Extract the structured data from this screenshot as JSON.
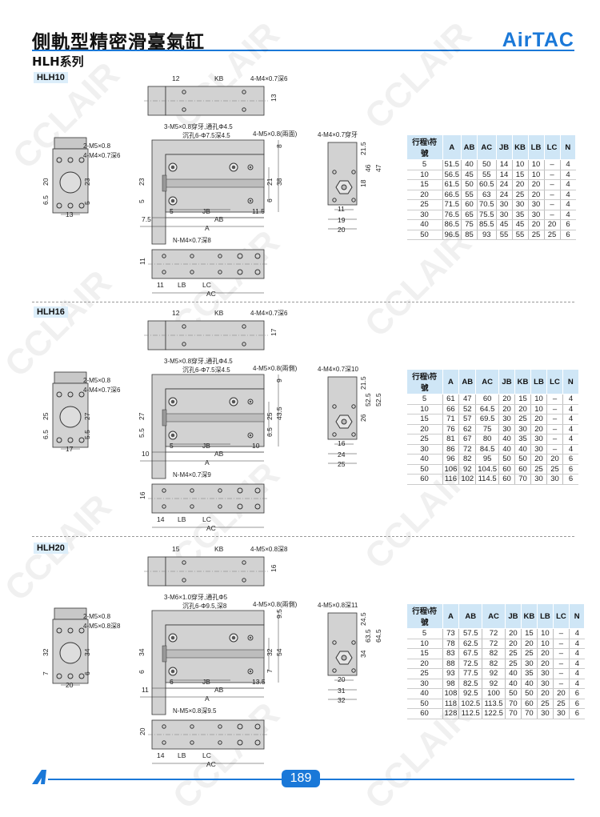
{
  "header": {
    "title": "側軌型精密滑臺氣缸",
    "brand": "AirTAC",
    "series": "HLH系列"
  },
  "watermark": "CCLAIR",
  "footer": {
    "page_number": "189",
    "accent": "#1a78d8"
  },
  "table_headers": [
    "行程\\符號",
    "A",
    "AB",
    "AC",
    "JB",
    "KB",
    "LB",
    "LC",
    "N"
  ],
  "sections": [
    {
      "model": "HLH10",
      "labels": {
        "t_12": "12",
        "t_kb": "KB",
        "t_call": "4-M4×0.7深6",
        "t_h": "13",
        "f_call1": "3-M5×0.8穿牙,通孔Φ4.5",
        "f_call2": "沉孔6-Φ7.5深4.5",
        "f_call3": "4-M5×0.8(兩面)",
        "f_top": "8",
        "f_mid": "21",
        "f_tot": "38",
        "f_bot": "6",
        "f_left": "23",
        "f_left2": "5",
        "f_5": "5",
        "f_jb": "JB",
        "f_r": "11.5",
        "f_l": "7.5",
        "f_ab": "AB",
        "f_a": "A",
        "b_call": "N-M4×0.7深8",
        "b_h": "11",
        "b_l": "11",
        "b_lb": "LB",
        "b_lc": "LC",
        "b_ac": "AC",
        "s_call": "4-M4×0.7穿牙",
        "s_1": "21.5",
        "s_2": "46",
        "s_3": "47",
        "s_4": "18",
        "s_w1": "11",
        "s_w2": "19",
        "s_w3": "20",
        "e_call1": "2-M5×0.8",
        "e_call2": "4-M4×0.7深6",
        "e_1": "20",
        "e_2": "23",
        "e_3": "6.5",
        "e_4": "5",
        "e_w": "13"
      },
      "rows": [
        [
          "5",
          "51.5",
          "40",
          "50",
          "14",
          "10",
          "10",
          "–",
          "4"
        ],
        [
          "10",
          "56.5",
          "45",
          "55",
          "14",
          "15",
          "10",
          "–",
          "4"
        ],
        [
          "15",
          "61.5",
          "50",
          "60.5",
          "24",
          "20",
          "20",
          "–",
          "4"
        ],
        [
          "20",
          "66.5",
          "55",
          "63",
          "24",
          "25",
          "20",
          "–",
          "4"
        ],
        [
          "25",
          "71.5",
          "60",
          "70.5",
          "30",
          "30",
          "30",
          "–",
          "4"
        ],
        [
          "30",
          "76.5",
          "65",
          "75.5",
          "30",
          "35",
          "30",
          "–",
          "4"
        ],
        [
          "40",
          "86.5",
          "75",
          "85.5",
          "45",
          "45",
          "20",
          "20",
          "6"
        ],
        [
          "50",
          "96.5",
          "85",
          "93",
          "55",
          "55",
          "25",
          "25",
          "6"
        ]
      ]
    },
    {
      "model": "HLH16",
      "labels": {
        "t_12": "12",
        "t_kb": "KB",
        "t_call": "4-M4×0.7深6",
        "t_h": "17",
        "f_call1": "3-M5×0.8穿牙,通孔Φ4.5",
        "f_call2": "沉孔6-Φ7.5深4.5",
        "f_call3": "4-M5×0.8(兩側)",
        "f_top": "9",
        "f_mid": "25",
        "f_tot": "43.5",
        "f_bot": "6.5",
        "f_left": "27",
        "f_left2": "5.5",
        "f_5": "5",
        "f_jb": "JB",
        "f_r": "10",
        "f_l": "10",
        "f_ab": "AB",
        "f_a": "A",
        "b_call": "N-M4×0.7深9",
        "b_h": "16",
        "b_l": "14",
        "b_lb": "LB",
        "b_lc": "LC",
        "b_ac": "AC",
        "s_call": "4-M4×0.7深10",
        "s_1": "21.5",
        "s_2": "52.5",
        "s_3": "52.5",
        "s_4": "26",
        "s_w1": "16",
        "s_w2": "24",
        "s_w3": "25",
        "e_call1": "2-M5×0.8",
        "e_call2": "4-M4×0.7深6",
        "e_1": "25",
        "e_2": "27",
        "e_3": "6.5",
        "e_4": "5.5",
        "e_w": "17"
      },
      "rows": [
        [
          "5",
          "61",
          "47",
          "60",
          "20",
          "15",
          "10",
          "–",
          "4"
        ],
        [
          "10",
          "66",
          "52",
          "64.5",
          "20",
          "20",
          "10",
          "–",
          "4"
        ],
        [
          "15",
          "71",
          "57",
          "69.5",
          "30",
          "25",
          "20",
          "–",
          "4"
        ],
        [
          "20",
          "76",
          "62",
          "75",
          "30",
          "30",
          "20",
          "–",
          "4"
        ],
        [
          "25",
          "81",
          "67",
          "80",
          "40",
          "35",
          "30",
          "–",
          "4"
        ],
        [
          "30",
          "86",
          "72",
          "84.5",
          "40",
          "40",
          "30",
          "–",
          "4"
        ],
        [
          "40",
          "96",
          "82",
          "95",
          "50",
          "50",
          "20",
          "20",
          "6"
        ],
        [
          "50",
          "106",
          "92",
          "104.5",
          "60",
          "60",
          "25",
          "25",
          "6"
        ],
        [
          "60",
          "116",
          "102",
          "114.5",
          "60",
          "70",
          "30",
          "30",
          "6"
        ]
      ]
    },
    {
      "model": "HLH20",
      "labels": {
        "t_12": "15",
        "t_kb": "KB",
        "t_call": "4-M5×0.8深8",
        "t_h": "16",
        "f_call1": "3-M6×1.0穿牙,通孔Φ5",
        "f_call2": "沉孔6-Φ9.5,深8",
        "f_call3": "4-M5×0.8(兩側)",
        "f_top": "9.5",
        "f_mid": "32",
        "f_tot": "54",
        "f_bot": "7",
        "f_left": "34",
        "f_left2": "6",
        "f_5": "6",
        "f_jb": "JB",
        "f_r": "13.5",
        "f_l": "11",
        "f_ab": "AB",
        "f_a": "A",
        "b_call": "N-M5×0.8深9.5",
        "b_h": "20",
        "b_l": "14",
        "b_lb": "LB",
        "b_lc": "LC",
        "b_ac": "AC",
        "s_call": "4-M5×0.8深11",
        "s_1": "24.5",
        "s_2": "63.5",
        "s_3": "64.5",
        "s_4": "34",
        "s_w1": "20",
        "s_w2": "31",
        "s_w3": "32",
        "e_call1": "2-M5×0.8",
        "e_call2": "4-M5×0.8深8",
        "e_1": "32",
        "e_2": "34",
        "e_3": "7",
        "e_4": "6",
        "e_w": "20"
      },
      "rows": [
        [
          "5",
          "73",
          "57.5",
          "72",
          "20",
          "15",
          "10",
          "–",
          "4"
        ],
        [
          "10",
          "78",
          "62.5",
          "72",
          "20",
          "20",
          "10",
          "–",
          "4"
        ],
        [
          "15",
          "83",
          "67.5",
          "82",
          "25",
          "25",
          "20",
          "–",
          "4"
        ],
        [
          "20",
          "88",
          "72.5",
          "82",
          "25",
          "30",
          "20",
          "–",
          "4"
        ],
        [
          "25",
          "93",
          "77.5",
          "92",
          "40",
          "35",
          "30",
          "–",
          "4"
        ],
        [
          "30",
          "98",
          "82.5",
          "92",
          "40",
          "40",
          "30",
          "–",
          "4"
        ],
        [
          "40",
          "108",
          "92.5",
          "100",
          "50",
          "50",
          "20",
          "20",
          "6"
        ],
        [
          "50",
          "118",
          "102.5",
          "113.5",
          "70",
          "60",
          "25",
          "25",
          "6"
        ],
        [
          "60",
          "128",
          "112.5",
          "122.5",
          "70",
          "70",
          "30",
          "30",
          "6"
        ]
      ]
    }
  ]
}
